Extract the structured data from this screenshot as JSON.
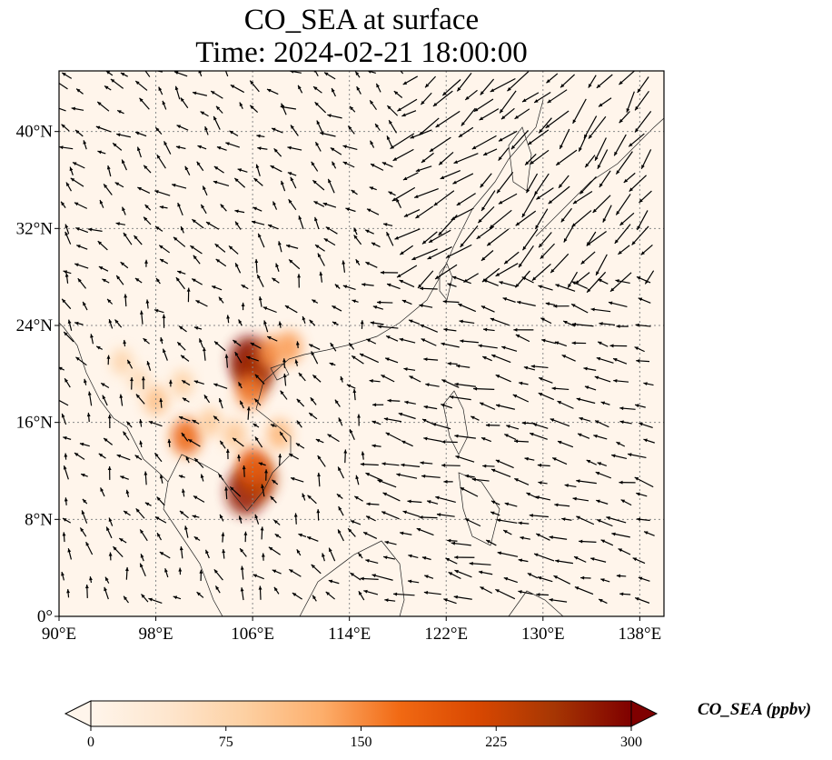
{
  "title": {
    "line1": "CO_SEA at surface",
    "line2": "Time: 2024-02-21 18:00:00"
  },
  "map": {
    "variable": "CO_SEA",
    "level": "surface",
    "extent_lon": [
      90,
      140
    ],
    "extent_lat": [
      0,
      45
    ],
    "gridlines": true,
    "background_color": "#fff5eb",
    "lat_ticks": [
      {
        "value": 0,
        "label": "0°"
      },
      {
        "value": 8,
        "label": "8°N"
      },
      {
        "value": 16,
        "label": "16°N"
      },
      {
        "value": 24,
        "label": "24°N"
      },
      {
        "value": 32,
        "label": "32°N"
      },
      {
        "value": 40,
        "label": "40°N"
      }
    ],
    "lon_ticks": [
      {
        "value": 90,
        "label": "90°E"
      },
      {
        "value": 98,
        "label": "98°E"
      },
      {
        "value": 106,
        "label": "106°E"
      },
      {
        "value": 114,
        "label": "114°E"
      },
      {
        "value": 122,
        "label": "122°E"
      },
      {
        "value": 130,
        "label": "130°E"
      },
      {
        "value": 138,
        "label": "138°E"
      }
    ],
    "hotspots": [
      {
        "lon": 105.7,
        "lat": 21.1,
        "value": 290
      },
      {
        "lon": 106.2,
        "lat": 20.2,
        "value": 270
      },
      {
        "lon": 107.5,
        "lat": 21.7,
        "value": 150
      },
      {
        "lon": 109.0,
        "lat": 22.2,
        "value": 140
      },
      {
        "lon": 105.8,
        "lat": 18.6,
        "value": 160
      },
      {
        "lon": 105.4,
        "lat": 10.3,
        "value": 280
      },
      {
        "lon": 106.5,
        "lat": 11.3,
        "value": 240
      },
      {
        "lon": 106.0,
        "lat": 12.4,
        "value": 190
      },
      {
        "lon": 108.2,
        "lat": 15.0,
        "value": 120
      },
      {
        "lon": 100.5,
        "lat": 14.8,
        "value": 180
      },
      {
        "lon": 102.5,
        "lat": 16.0,
        "value": 95
      },
      {
        "lon": 104.5,
        "lat": 15.0,
        "value": 100
      },
      {
        "lon": 100.2,
        "lat": 19.2,
        "value": 85
      },
      {
        "lon": 95.2,
        "lat": 21.0,
        "value": 80
      },
      {
        "lon": 98.0,
        "lat": 17.8,
        "value": 110
      },
      {
        "lon": 96.6,
        "lat": 19.5,
        "value": 70
      }
    ]
  },
  "colorbar": {
    "label": "CO_SEA (ppbv)",
    "min": 0,
    "max": 300,
    "ticks": [
      {
        "value": 0,
        "label": "0"
      },
      {
        "value": 75,
        "label": "75"
      },
      {
        "value": 150,
        "label": "150"
      },
      {
        "value": 225,
        "label": "225"
      },
      {
        "value": 300,
        "label": "300"
      }
    ],
    "colormap": [
      "#fff5eb",
      "#fee6ce",
      "#fdd0a2",
      "#fdae6b",
      "#f16913",
      "#d94801",
      "#a63603",
      "#7f0000"
    ]
  }
}
